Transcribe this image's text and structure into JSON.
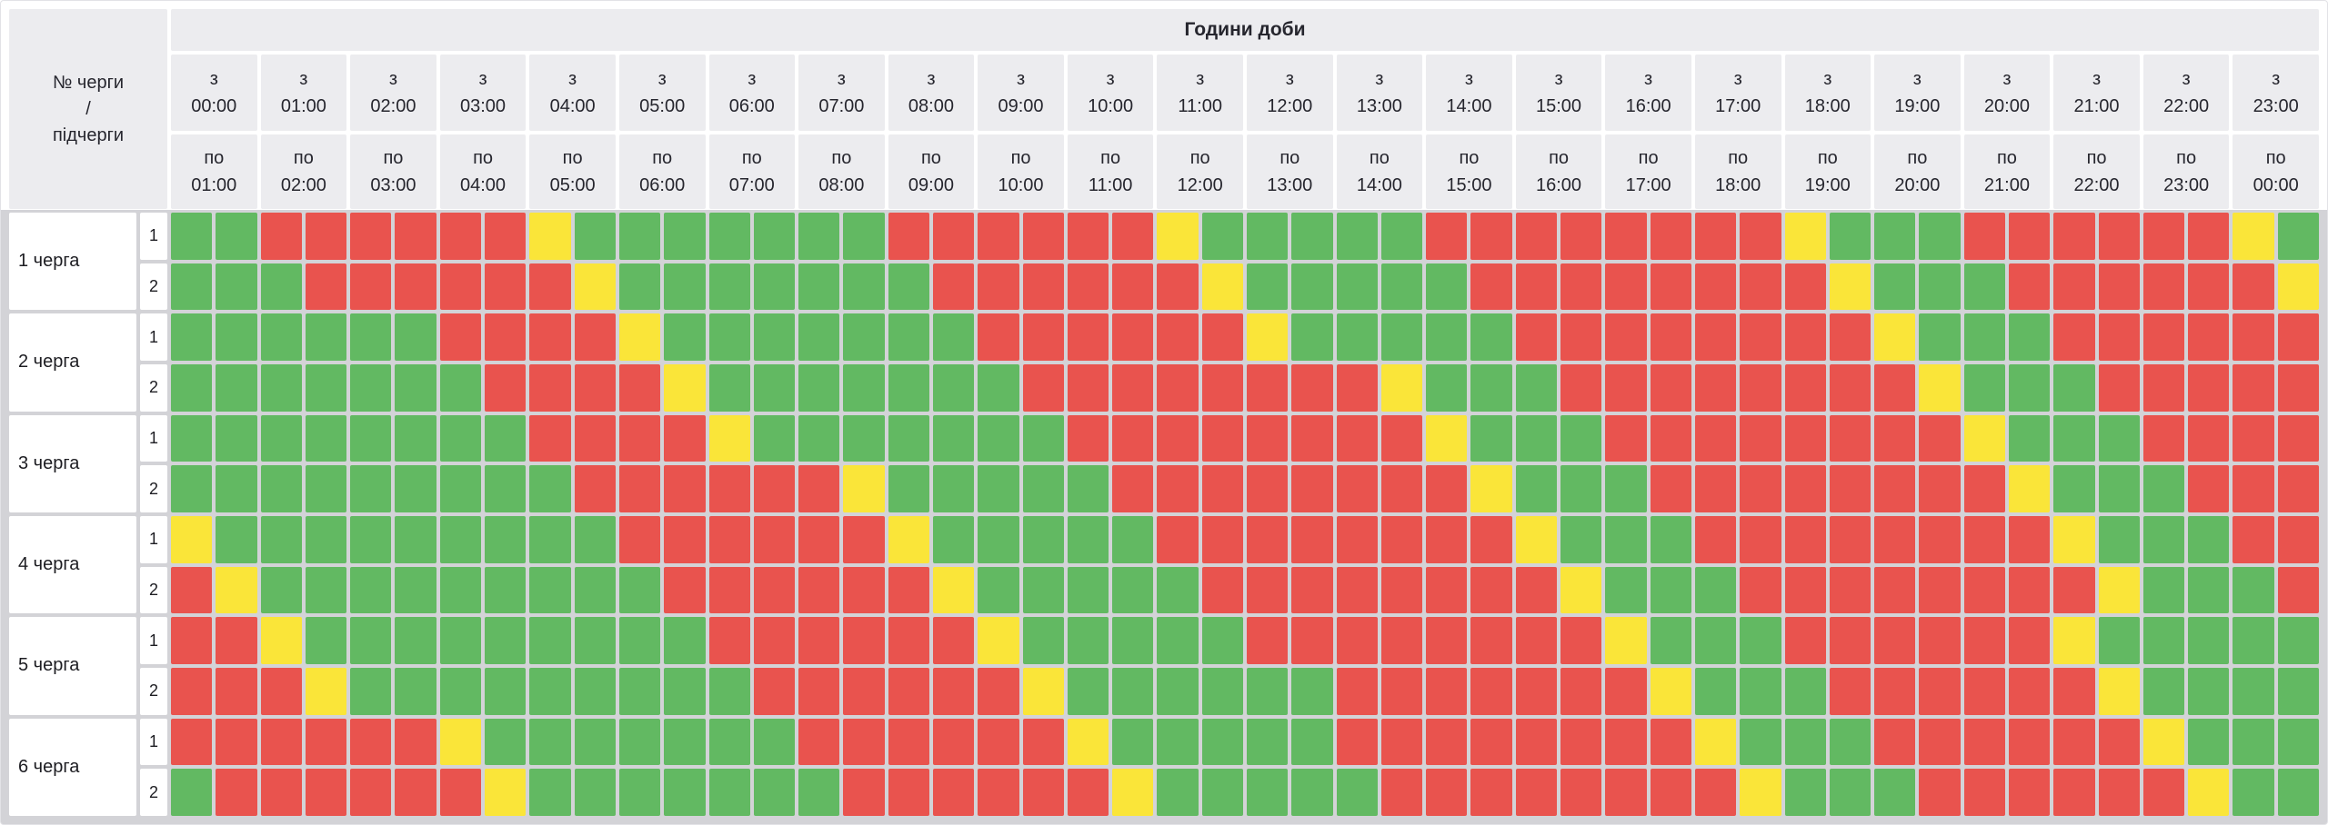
{
  "table": {
    "title": "Години доби",
    "corner": {
      "line1": "№ черги",
      "line2": "/",
      "line3": "підчерги"
    },
    "from_prefix": "з",
    "to_prefix": "по",
    "hours": [
      {
        "from": "00:00",
        "to": "01:00"
      },
      {
        "from": "01:00",
        "to": "02:00"
      },
      {
        "from": "02:00",
        "to": "03:00"
      },
      {
        "from": "03:00",
        "to": "04:00"
      },
      {
        "from": "04:00",
        "to": "05:00"
      },
      {
        "from": "05:00",
        "to": "06:00"
      },
      {
        "from": "06:00",
        "to": "07:00"
      },
      {
        "from": "07:00",
        "to": "08:00"
      },
      {
        "from": "08:00",
        "to": "09:00"
      },
      {
        "from": "09:00",
        "to": "10:00"
      },
      {
        "from": "10:00",
        "to": "11:00"
      },
      {
        "from": "11:00",
        "to": "12:00"
      },
      {
        "from": "12:00",
        "to": "13:00"
      },
      {
        "from": "13:00",
        "to": "14:00"
      },
      {
        "from": "14:00",
        "to": "15:00"
      },
      {
        "from": "15:00",
        "to": "16:00"
      },
      {
        "from": "16:00",
        "to": "17:00"
      },
      {
        "from": "17:00",
        "to": "18:00"
      },
      {
        "from": "18:00",
        "to": "19:00"
      },
      {
        "from": "19:00",
        "to": "20:00"
      },
      {
        "from": "20:00",
        "to": "21:00"
      },
      {
        "from": "21:00",
        "to": "22:00"
      },
      {
        "from": "22:00",
        "to": "23:00"
      },
      {
        "from": "23:00",
        "to": "00:00"
      }
    ],
    "queues": [
      {
        "label": "1 черга",
        "subqueues": [
          {
            "number": "1",
            "cells": "GGRRRRRRYGGGGGGGRRRRRRYGGGGGRRRRRRRRYGGGRRRRRRYG"
          },
          {
            "number": "2",
            "cells": "GGGRRRRRRYGGGGGGGRRRRRRYGGGGGRRRRRRRRYGGGRRRRRRY"
          }
        ]
      },
      {
        "label": "2 черга",
        "subqueues": [
          {
            "number": "1",
            "cells": "GGGGGGRRRRYGGGGGGGRRRRRRYGGGGGRRRRRRRRYGGGRRRRRR"
          },
          {
            "number": "2",
            "cells": "GGGGGGGRRRRYGGGGGGGRRRRRRRRYGGGRRRRRRRRYGGGRRRRR"
          }
        ]
      },
      {
        "label": "3 черга",
        "subqueues": [
          {
            "number": "1",
            "cells": "GGGGGGGGRRRRYGGGGGGGRRRRRRRRYGGGRRRRRRRRYGGGRRRR"
          },
          {
            "number": "2",
            "cells": "GGGGGGGGGRRRRRRYGGGGGRRRRRRRRYGGGRRRRRRRRYGGGRRR"
          }
        ]
      },
      {
        "label": "4 черга",
        "subqueues": [
          {
            "number": "1",
            "cells": "YGGGGGGGGGRRRRRRYGGGGGRRRRRRRRYGGGRRRRRRRRYGGGRR"
          },
          {
            "number": "2",
            "cells": "RYGGGGGGGGGRRRRRRYGGGGGRRRRRRRRYGGGRRRRRRRRYGGGR"
          }
        ]
      },
      {
        "label": "5 черга",
        "subqueues": [
          {
            "number": "1",
            "cells": "RRYGGGGGGGGGRRRRRRYGGGGGRRRRRRRRYGGGRRRRRRYGGGGG"
          },
          {
            "number": "2",
            "cells": "RRRYGGGGGGGGGRRRRRRYGGGGGGRRRRRRRYGGGRRRRRRYGGGG"
          }
        ]
      },
      {
        "label": "6 черга",
        "subqueues": [
          {
            "number": "1",
            "cells": "RRRRRRYGGGGGGGRRRRRRYGGGGGRRRRRRRRYGGGRRRRRRYGGG"
          },
          {
            "number": "2",
            "cells": "GRRRRRRYGGGGGGGRRRRRRYGGGGGRRRRRRRRYGGGRRRRRRYGG"
          }
        ]
      }
    ]
  },
  "cell_states": {
    "G": "power-on",
    "R": "power-off",
    "Y": "transition"
  },
  "colors": {
    "power-on": "#62b962",
    "power-off": "#e9534e",
    "transition": "#fae539",
    "header_bg": "#ececef",
    "grid_gap_bg": "#d3d3d7",
    "text": "#26262e"
  }
}
